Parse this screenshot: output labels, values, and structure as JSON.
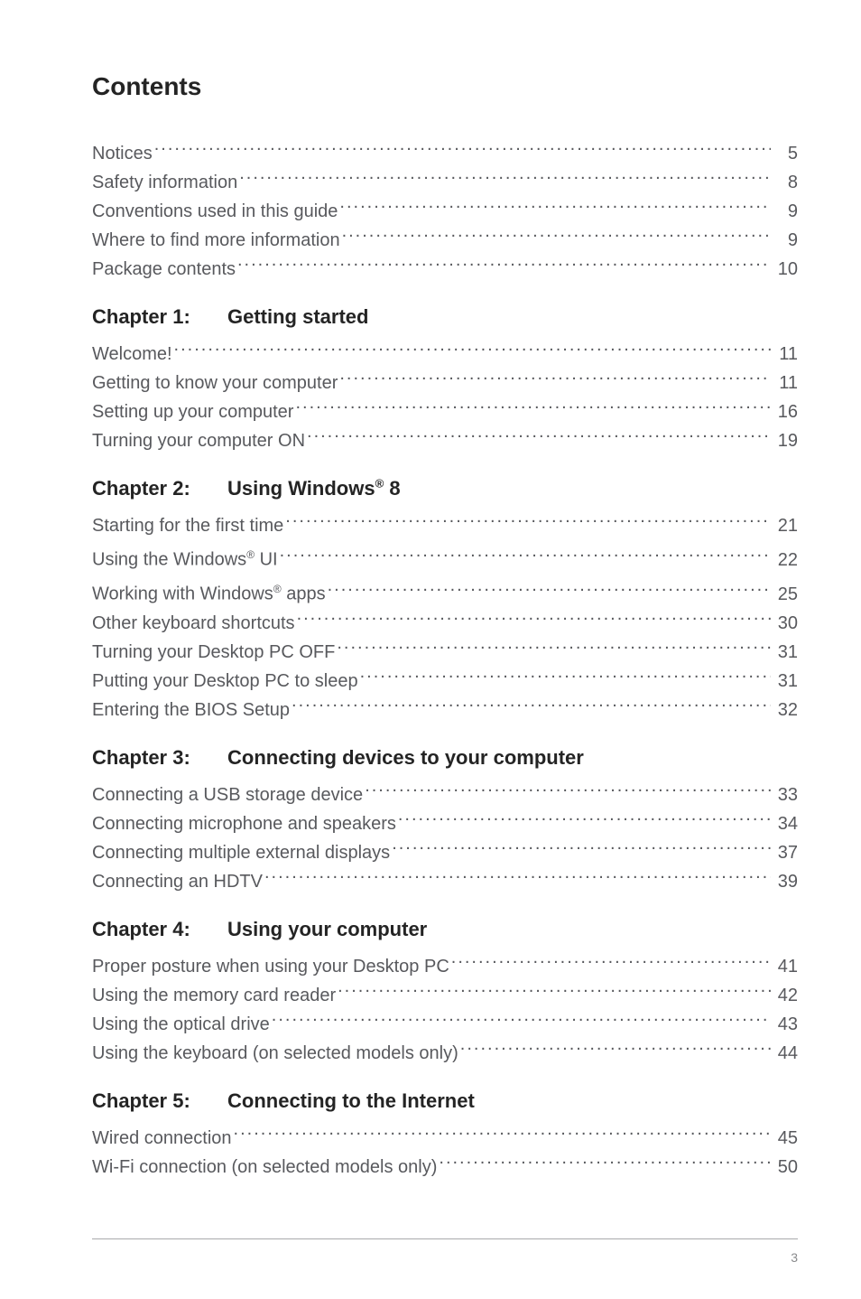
{
  "title": "Contents",
  "front": [
    {
      "text": "Notices",
      "page": "5"
    },
    {
      "text": "Safety information",
      "page": "8"
    },
    {
      "text": "Conventions used in this guide",
      "page": "9"
    },
    {
      "text": "Where to find more information",
      "page": "9"
    },
    {
      "text": "Package contents",
      "page": "10"
    }
  ],
  "chapters": [
    {
      "label": "Chapter 1:",
      "title_html": "Getting started",
      "items": [
        {
          "text": "Welcome!",
          "page": "11"
        },
        {
          "text": "Getting to know your computer",
          "page": "11"
        },
        {
          "text": "Setting up your computer",
          "page": "16"
        },
        {
          "text": "Turning your computer ON",
          "page": "19"
        }
      ]
    },
    {
      "label": "Chapter 2:",
      "title_html": "Using Windows<sup>®</sup> 8",
      "items": [
        {
          "text": "Starting for the first time",
          "page": "21"
        },
        {
          "text_html": "Using the Windows<sup>®</sup> UI",
          "page": "22"
        },
        {
          "text_html": "Working with Windows<sup>®</sup> apps",
          "page": "25"
        },
        {
          "text": "Other keyboard shortcuts",
          "page": "30"
        },
        {
          "text": "Turning your Desktop PC OFF",
          "page": "31"
        },
        {
          "text": "Putting your Desktop PC to sleep",
          "page": "31"
        },
        {
          "text": "Entering the BIOS Setup",
          "page": "32"
        }
      ]
    },
    {
      "label": "Chapter 3:",
      "title_html": "Connecting devices to your computer",
      "items": [
        {
          "text": "Connecting a USB storage device",
          "page": "33"
        },
        {
          "text": "Connecting microphone and speakers",
          "page": "34"
        },
        {
          "text": "Connecting multiple external displays",
          "page": "37"
        },
        {
          "text": "Connecting an HDTV",
          "page": "39"
        }
      ]
    },
    {
      "label": "Chapter 4:",
      "title_html": "Using your computer",
      "items": [
        {
          "text": "Proper posture when using your Desktop PC",
          "page": "41"
        },
        {
          "text": "Using the memory card reader",
          "page": "42"
        },
        {
          "text": "Using the optical drive",
          "page": "43"
        },
        {
          "text": "Using the keyboard (on selected models only)",
          "page": "44"
        }
      ]
    },
    {
      "label": "Chapter 5:",
      "title_html": "Connecting to the Internet",
      "items": [
        {
          "text": "Wired connection",
          "page": "45"
        },
        {
          "text": "Wi-Fi connection (on selected models only)",
          "page": "50"
        }
      ]
    }
  ],
  "page_number": "3",
  "colors": {
    "background": "#ffffff",
    "heading": "#242424",
    "body_text": "#58595d",
    "rule": "#a9aaac",
    "footer_text": "#8a8b8d"
  },
  "typography": {
    "title_fontsize": 28,
    "chapter_fontsize": 22,
    "toc_fontsize": 20,
    "line_height": 32,
    "footer_fontsize": 14,
    "font_family": "Arial"
  }
}
